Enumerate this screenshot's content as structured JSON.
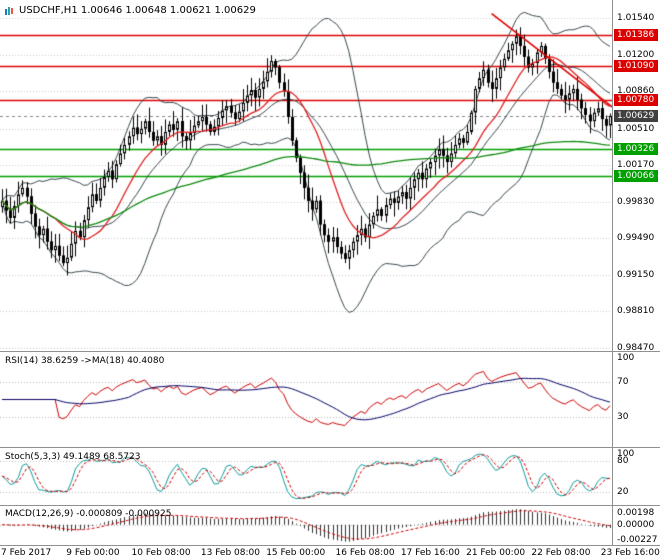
{
  "window": {
    "title": "USDCHF,H1 1.00646 1.00648 1.00621 1.00629"
  },
  "panels": {
    "rsi": {
      "label": "RSI(14) 38.6259 ->MA(18) 40.4080",
      "scale": [
        "100",
        "70",
        "30"
      ],
      "levels": [
        70,
        30
      ]
    },
    "stoch": {
      "label": "Stoch(5,3,3) 49.1489 68.5723",
      "scale": [
        "100",
        "80",
        "20"
      ],
      "levels": [
        80,
        20
      ]
    },
    "macd": {
      "label": "MACD(12,26,9) -0.000809 -0.000925",
      "scale": [
        "0.00198",
        "0.00000",
        "-0.00227"
      ]
    }
  },
  "colors": {
    "grid": "#cccccc",
    "grid2": "#bbbbbb",
    "level_red": "#dd0000",
    "level_green": "#00a000",
    "current_badge": "#404040",
    "bid_line": "#888888",
    "candle": "#000000",
    "candle_up": "#ffffff",
    "band": "#37474f",
    "ma_red": "#e02020",
    "ma_green": "#0e8a0e",
    "trendline": "#dd0000",
    "rsi": "#cc0000",
    "rsi_ma": "#000066",
    "stoch_k": "#0f9b9b",
    "stoch_d": "#cc0000",
    "macd_hist": "#333333",
    "macd_signal": "#cc0000"
  },
  "chart_data": {
    "type": "candlestick",
    "symbol": "USDCHF",
    "timeframe": "H1",
    "title": "USDCHF H1 candlesticks with Bollinger Bands, red/green MAs, horizontal support/resistance levels, red descending trendline, RSI(14)+MA(18), Stoch(5,3,3), MACD(12,26,9)",
    "y_axis": [
      "1.01540",
      "1.01200",
      "1.00860",
      "1.00510",
      "1.00170",
      "0.99830",
      "0.99490",
      "0.99150",
      "0.98810",
      "0.98470"
    ],
    "x_axis": [
      {
        "label": "7 Feb 2017",
        "bar": 0
      },
      {
        "label": "9 Feb 00:00",
        "bar": 16
      },
      {
        "label": "10 Feb 08:00",
        "bar": 32
      },
      {
        "label": "13 Feb 08:00",
        "bar": 49
      },
      {
        "label": "15 Feb 00:00",
        "bar": 65
      },
      {
        "label": "16 Feb 08:00",
        "bar": 82
      },
      {
        "label": "17 Feb 16:00",
        "bar": 98
      },
      {
        "label": "21 Feb 00:00",
        "bar": 114
      },
      {
        "label": "22 Feb 08:00",
        "bar": 130
      },
      {
        "label": "23 Feb 16:00",
        "bar": 147
      }
    ],
    "levels": [
      {
        "price": 1.01386,
        "label": "1.01386",
        "kind": "resistance"
      },
      {
        "price": 1.0109,
        "label": "1.01090",
        "kind": "resistance"
      },
      {
        "price": 1.0078,
        "label": "1.00780",
        "kind": "resistance"
      },
      {
        "price": 1.00326,
        "label": "1.00326",
        "kind": "support"
      },
      {
        "price": 1.00066,
        "label": "1.00066",
        "kind": "support"
      }
    ],
    "current_price": {
      "price": 1.00629,
      "label": "1.00629"
    },
    "trendline": {
      "bar1": 120,
      "price1": 1.0158,
      "bar2": 150,
      "price2": 1.007
    },
    "indicator_settings": {
      "bollinger": [
        20,
        2
      ],
      "ma_fast_red": 14,
      "ma_slow_green": 80,
      "rsi": [
        14,
        18
      ],
      "stoch": [
        5,
        3,
        3
      ],
      "macd": [
        12,
        26,
        9
      ]
    },
    "closes": [
      0.9984,
      0.9975,
      0.9968,
      0.9979,
      0.999,
      0.9996,
      0.9988,
      0.9972,
      0.996,
      0.9952,
      0.9958,
      0.9946,
      0.9938,
      0.9942,
      0.9933,
      0.9926,
      0.9931,
      0.9944,
      0.9956,
      0.995,
      0.9966,
      0.9978,
      0.999,
      0.9984,
      0.9996,
      1.0006,
      1.0012,
      1.0004,
      1.0018,
      1.0028,
      1.0036,
      1.0044,
      1.0052,
      1.0046,
      1.0051,
      1.0058,
      1.0048,
      1.004,
      1.0044,
      1.0036,
      1.0048,
      1.0055,
      1.005,
      1.0058,
      1.0044,
      1.004,
      1.0047,
      1.0054,
      1.0058,
      1.0062,
      1.0055,
      1.0048,
      1.0053,
      1.0061,
      1.0068,
      1.0072,
      1.0066,
      1.006,
      1.0067,
      1.0075,
      1.0082,
      1.0087,
      1.008,
      1.0088,
      1.0095,
      1.0104,
      1.0114,
      1.0108,
      1.0094,
      1.0086,
      1.0062,
      1.004,
      1.0024,
      1.001,
      0.9996,
      0.9984,
      0.9976,
      0.9984,
      0.9962,
      0.9952,
      0.9946,
      0.995,
      0.9941,
      0.9935,
      0.993,
      0.9938,
      0.9946,
      0.9952,
      0.9958,
      0.995,
      0.9962,
      0.997,
      0.9976,
      0.997,
      0.998,
      0.9986,
      0.9982,
      0.9988,
      0.9992,
      0.9986,
      0.9996,
      1.0004,
      1.001,
      1.0004,
      1.0014,
      1.002,
      1.0026,
      1.0032,
      1.0026,
      1.002,
      1.0028,
      1.0036,
      1.0042,
      1.0038,
      1.0048,
      1.0066,
      1.0088,
      1.0098,
      1.0106,
      1.0094,
      1.0088,
      1.0098,
      1.0108,
      1.0116,
      1.0124,
      1.013,
      1.0137,
      1.0128,
      1.0118,
      1.0108,
      1.0112,
      1.0122,
      1.0128,
      1.0116,
      1.0104,
      1.0094,
      1.0088,
      1.0082,
      1.0078,
      1.0084,
      1.0088,
      1.0078,
      1.007,
      1.0064,
      1.0058,
      1.0066,
      1.007,
      1.006,
      1.0054,
      1.0063
    ]
  }
}
